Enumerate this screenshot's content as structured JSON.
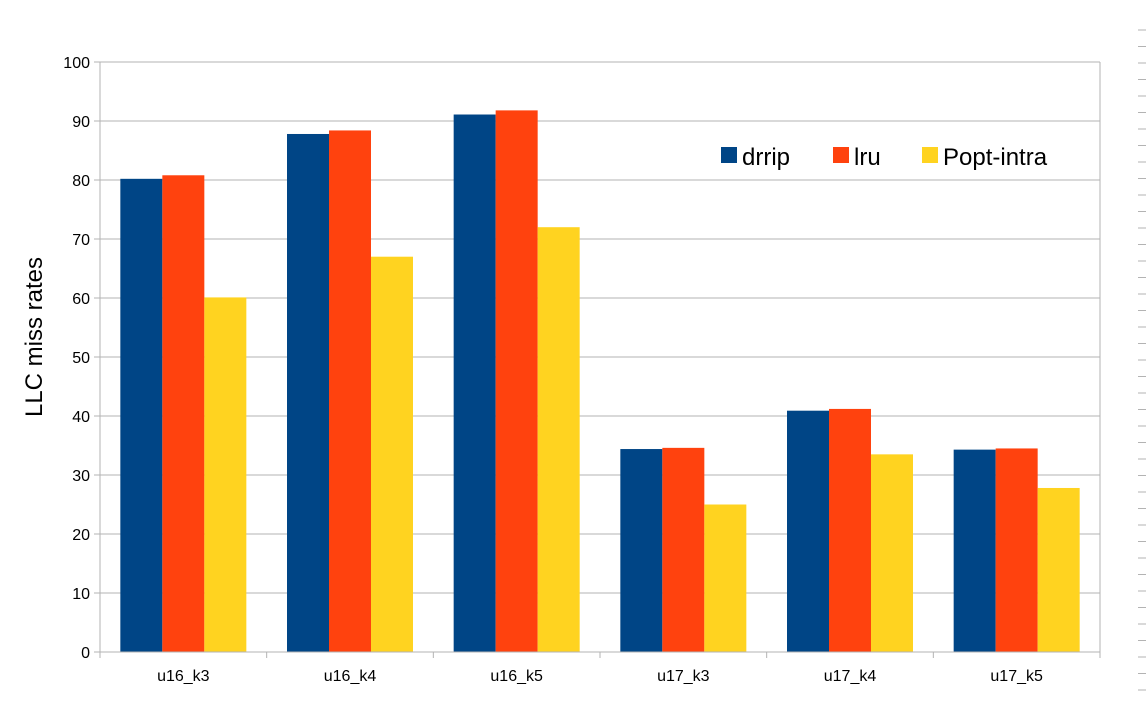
{
  "chart_data": {
    "type": "bar",
    "title": "",
    "xlabel": "",
    "ylabel": "LLC miss rates",
    "ylim": [
      0,
      100
    ],
    "yticks": [
      0,
      10,
      20,
      30,
      40,
      50,
      60,
      70,
      80,
      90,
      100
    ],
    "grid": true,
    "legend_position": "top-right",
    "categories": [
      "u16_k3",
      "u16_k4",
      "u16_k5",
      "u17_k3",
      "u17_k4",
      "u17_k5"
    ],
    "series": [
      {
        "name": "drrip",
        "color": "#004586",
        "values": [
          80.2,
          87.8,
          91.1,
          34.4,
          40.9,
          34.3
        ]
      },
      {
        "name": "lru",
        "color": "#ff420e",
        "values": [
          80.8,
          88.4,
          91.8,
          34.6,
          41.2,
          34.5
        ]
      },
      {
        "name": "Popt-intra",
        "color": "#ffd320",
        "values": [
          60.1,
          67.0,
          72.0,
          25.0,
          33.5,
          27.8
        ]
      }
    ]
  }
}
